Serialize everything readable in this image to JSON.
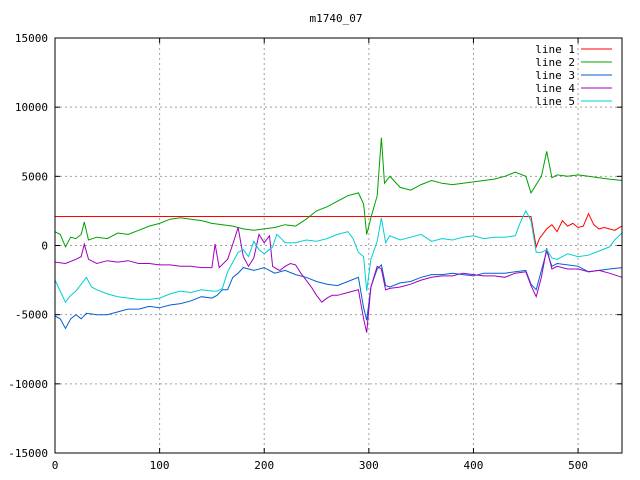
{
  "chart_data": {
    "type": "line",
    "title": "m1740_07",
    "xlabel": "",
    "ylabel": "",
    "xlim": [
      0,
      542
    ],
    "ylim": [
      -15000,
      15000
    ],
    "grid": true,
    "legend_position": "top-right",
    "x_ticks": [
      0,
      100,
      200,
      300,
      400,
      500
    ],
    "y_ticks": [
      -15000,
      -10000,
      -5000,
      0,
      5000,
      10000,
      15000
    ],
    "series": [
      {
        "name": "line 1",
        "color": "#ff0000",
        "points": [
          [
            0,
            2100
          ],
          [
            150,
            2100
          ],
          [
            300,
            2100
          ],
          [
            455,
            2100
          ],
          [
            460,
            -100
          ],
          [
            463,
            500
          ],
          [
            470,
            1200
          ],
          [
            475,
            1500
          ],
          [
            480,
            1000
          ],
          [
            485,
            1800
          ],
          [
            490,
            1400
          ],
          [
            495,
            1600
          ],
          [
            500,
            1300
          ],
          [
            505,
            1400
          ],
          [
            510,
            2300
          ],
          [
            515,
            1500
          ],
          [
            520,
            1200
          ],
          [
            525,
            1300
          ],
          [
            530,
            1200
          ],
          [
            535,
            1100
          ],
          [
            542,
            1400
          ]
        ]
      },
      {
        "name": "line 2",
        "color": "#00a000",
        "points": [
          [
            0,
            1000
          ],
          [
            5,
            800
          ],
          [
            10,
            -100
          ],
          [
            15,
            600
          ],
          [
            20,
            500
          ],
          [
            25,
            800
          ],
          [
            28,
            1700
          ],
          [
            32,
            400
          ],
          [
            40,
            600
          ],
          [
            50,
            500
          ],
          [
            60,
            900
          ],
          [
            70,
            800
          ],
          [
            80,
            1100
          ],
          [
            90,
            1400
          ],
          [
            100,
            1600
          ],
          [
            110,
            1900
          ],
          [
            120,
            2000
          ],
          [
            130,
            1900
          ],
          [
            140,
            1800
          ],
          [
            150,
            1600
          ],
          [
            160,
            1500
          ],
          [
            170,
            1400
          ],
          [
            180,
            1200
          ],
          [
            190,
            1100
          ],
          [
            200,
            1200
          ],
          [
            210,
            1300
          ],
          [
            220,
            1500
          ],
          [
            230,
            1400
          ],
          [
            240,
            1900
          ],
          [
            250,
            2500
          ],
          [
            260,
            2800
          ],
          [
            270,
            3200
          ],
          [
            280,
            3600
          ],
          [
            290,
            3800
          ],
          [
            295,
            3000
          ],
          [
            298,
            800
          ],
          [
            302,
            2000
          ],
          [
            308,
            3600
          ],
          [
            312,
            7800
          ],
          [
            315,
            4500
          ],
          [
            320,
            5000
          ],
          [
            330,
            4200
          ],
          [
            340,
            4000
          ],
          [
            350,
            4400
          ],
          [
            360,
            4700
          ],
          [
            370,
            4500
          ],
          [
            380,
            4400
          ],
          [
            390,
            4500
          ],
          [
            400,
            4600
          ],
          [
            410,
            4700
          ],
          [
            420,
            4800
          ],
          [
            430,
            5000
          ],
          [
            440,
            5300
          ],
          [
            450,
            5000
          ],
          [
            455,
            3800
          ],
          [
            460,
            4400
          ],
          [
            465,
            5000
          ],
          [
            470,
            6800
          ],
          [
            475,
            4900
          ],
          [
            480,
            5100
          ],
          [
            490,
            5000
          ],
          [
            500,
            5100
          ],
          [
            510,
            5000
          ],
          [
            520,
            4900
          ],
          [
            530,
            4800
          ],
          [
            542,
            4700
          ]
        ]
      },
      {
        "name": "line 3",
        "color": "#0060d0",
        "points": [
          [
            0,
            -5100
          ],
          [
            5,
            -5300
          ],
          [
            10,
            -6000
          ],
          [
            15,
            -5300
          ],
          [
            20,
            -5000
          ],
          [
            25,
            -5300
          ],
          [
            30,
            -4900
          ],
          [
            40,
            -5000
          ],
          [
            50,
            -5000
          ],
          [
            60,
            -4800
          ],
          [
            70,
            -4600
          ],
          [
            80,
            -4600
          ],
          [
            90,
            -4400
          ],
          [
            100,
            -4500
          ],
          [
            110,
            -4300
          ],
          [
            120,
            -4200
          ],
          [
            130,
            -4000
          ],
          [
            140,
            -3700
          ],
          [
            150,
            -3800
          ],
          [
            155,
            -3600
          ],
          [
            160,
            -3200
          ],
          [
            165,
            -3200
          ],
          [
            170,
            -2300
          ],
          [
            175,
            -2000
          ],
          [
            180,
            -1600
          ],
          [
            190,
            -1800
          ],
          [
            200,
            -1600
          ],
          [
            210,
            -2000
          ],
          [
            220,
            -1800
          ],
          [
            230,
            -2100
          ],
          [
            240,
            -2300
          ],
          [
            250,
            -2600
          ],
          [
            260,
            -2800
          ],
          [
            270,
            -2900
          ],
          [
            280,
            -2600
          ],
          [
            290,
            -2300
          ],
          [
            295,
            -4500
          ],
          [
            298,
            -5400
          ],
          [
            302,
            -3000
          ],
          [
            308,
            -1700
          ],
          [
            312,
            -1400
          ],
          [
            316,
            -2900
          ],
          [
            320,
            -3000
          ],
          [
            330,
            -2700
          ],
          [
            340,
            -2600
          ],
          [
            350,
            -2300
          ],
          [
            360,
            -2100
          ],
          [
            370,
            -2100
          ],
          [
            380,
            -2000
          ],
          [
            390,
            -2100
          ],
          [
            400,
            -2200
          ],
          [
            410,
            -2000
          ],
          [
            420,
            -2000
          ],
          [
            430,
            -2000
          ],
          [
            440,
            -1900
          ],
          [
            450,
            -1800
          ],
          [
            455,
            -2800
          ],
          [
            460,
            -3200
          ],
          [
            465,
            -1800
          ],
          [
            470,
            -400
          ],
          [
            475,
            -1500
          ],
          [
            480,
            -1300
          ],
          [
            490,
            -1400
          ],
          [
            500,
            -1500
          ],
          [
            510,
            -1900
          ],
          [
            520,
            -1800
          ],
          [
            530,
            -1700
          ],
          [
            542,
            -1600
          ]
        ]
      },
      {
        "name": "line 4",
        "color": "#a000c0",
        "points": [
          [
            0,
            -1200
          ],
          [
            10,
            -1300
          ],
          [
            20,
            -1000
          ],
          [
            25,
            -800
          ],
          [
            28,
            100
          ],
          [
            32,
            -1000
          ],
          [
            40,
            -1300
          ],
          [
            50,
            -1100
          ],
          [
            60,
            -1200
          ],
          [
            70,
            -1100
          ],
          [
            80,
            -1300
          ],
          [
            90,
            -1300
          ],
          [
            100,
            -1400
          ],
          [
            110,
            -1400
          ],
          [
            120,
            -1500
          ],
          [
            130,
            -1500
          ],
          [
            140,
            -1600
          ],
          [
            150,
            -1600
          ],
          [
            153,
            100
          ],
          [
            157,
            -1600
          ],
          [
            165,
            -1000
          ],
          [
            170,
            100
          ],
          [
            175,
            1300
          ],
          [
            180,
            -800
          ],
          [
            185,
            -1500
          ],
          [
            190,
            -900
          ],
          [
            195,
            800
          ],
          [
            200,
            200
          ],
          [
            205,
            700
          ],
          [
            208,
            -1500
          ],
          [
            212,
            -1700
          ],
          [
            215,
            -1800
          ],
          [
            220,
            -1500
          ],
          [
            225,
            -1300
          ],
          [
            230,
            -1400
          ],
          [
            235,
            -2000
          ],
          [
            240,
            -2500
          ],
          [
            245,
            -3000
          ],
          [
            250,
            -3600
          ],
          [
            255,
            -4100
          ],
          [
            260,
            -3800
          ],
          [
            265,
            -3600
          ],
          [
            270,
            -3600
          ],
          [
            280,
            -3400
          ],
          [
            290,
            -3200
          ],
          [
            295,
            -5300
          ],
          [
            298,
            -6300
          ],
          [
            302,
            -3000
          ],
          [
            308,
            -1500
          ],
          [
            312,
            -1700
          ],
          [
            316,
            -3200
          ],
          [
            320,
            -3100
          ],
          [
            330,
            -3000
          ],
          [
            340,
            -2800
          ],
          [
            350,
            -2500
          ],
          [
            360,
            -2300
          ],
          [
            370,
            -2200
          ],
          [
            380,
            -2200
          ],
          [
            390,
            -2000
          ],
          [
            400,
            -2100
          ],
          [
            410,
            -2200
          ],
          [
            420,
            -2200
          ],
          [
            430,
            -2300
          ],
          [
            440,
            -2000
          ],
          [
            450,
            -1900
          ],
          [
            455,
            -2900
          ],
          [
            460,
            -3700
          ],
          [
            465,
            -2300
          ],
          [
            470,
            -200
          ],
          [
            475,
            -1700
          ],
          [
            480,
            -1500
          ],
          [
            490,
            -1700
          ],
          [
            500,
            -1700
          ],
          [
            510,
            -1900
          ],
          [
            520,
            -1800
          ],
          [
            530,
            -2000
          ],
          [
            542,
            -2300
          ]
        ]
      },
      {
        "name": "line 5",
        "color": "#00d0d0",
        "points": [
          [
            0,
            -2500
          ],
          [
            5,
            -3300
          ],
          [
            10,
            -4100
          ],
          [
            15,
            -3600
          ],
          [
            20,
            -3300
          ],
          [
            25,
            -2800
          ],
          [
            30,
            -2300
          ],
          [
            35,
            -3000
          ],
          [
            40,
            -3200
          ],
          [
            50,
            -3500
          ],
          [
            60,
            -3700
          ],
          [
            70,
            -3800
          ],
          [
            80,
            -3900
          ],
          [
            90,
            -3900
          ],
          [
            100,
            -3800
          ],
          [
            110,
            -3500
          ],
          [
            120,
            -3300
          ],
          [
            130,
            -3400
          ],
          [
            140,
            -3200
          ],
          [
            150,
            -3300
          ],
          [
            155,
            -3300
          ],
          [
            160,
            -3100
          ],
          [
            165,
            -1900
          ],
          [
            170,
            -1200
          ],
          [
            175,
            -500
          ],
          [
            180,
            -300
          ],
          [
            185,
            -800
          ],
          [
            190,
            300
          ],
          [
            195,
            -300
          ],
          [
            200,
            -600
          ],
          [
            208,
            -100
          ],
          [
            212,
            800
          ],
          [
            215,
            600
          ],
          [
            220,
            200
          ],
          [
            230,
            200
          ],
          [
            240,
            400
          ],
          [
            250,
            300
          ],
          [
            260,
            500
          ],
          [
            270,
            800
          ],
          [
            280,
            1000
          ],
          [
            285,
            500
          ],
          [
            290,
            -500
          ],
          [
            295,
            -800
          ],
          [
            298,
            -3300
          ],
          [
            302,
            -1000
          ],
          [
            308,
            300
          ],
          [
            312,
            2000
          ],
          [
            316,
            200
          ],
          [
            320,
            700
          ],
          [
            330,
            400
          ],
          [
            340,
            600
          ],
          [
            350,
            800
          ],
          [
            360,
            300
          ],
          [
            370,
            500
          ],
          [
            380,
            400
          ],
          [
            390,
            600
          ],
          [
            400,
            700
          ],
          [
            410,
            500
          ],
          [
            420,
            600
          ],
          [
            430,
            600
          ],
          [
            440,
            700
          ],
          [
            445,
            1700
          ],
          [
            450,
            2500
          ],
          [
            455,
            1800
          ],
          [
            460,
            -500
          ],
          [
            465,
            -500
          ],
          [
            470,
            -300
          ],
          [
            475,
            -900
          ],
          [
            480,
            -1000
          ],
          [
            490,
            -600
          ],
          [
            500,
            -800
          ],
          [
            510,
            -700
          ],
          [
            520,
            -400
          ],
          [
            530,
            -100
          ],
          [
            535,
            400
          ],
          [
            542,
            900
          ]
        ]
      }
    ]
  }
}
